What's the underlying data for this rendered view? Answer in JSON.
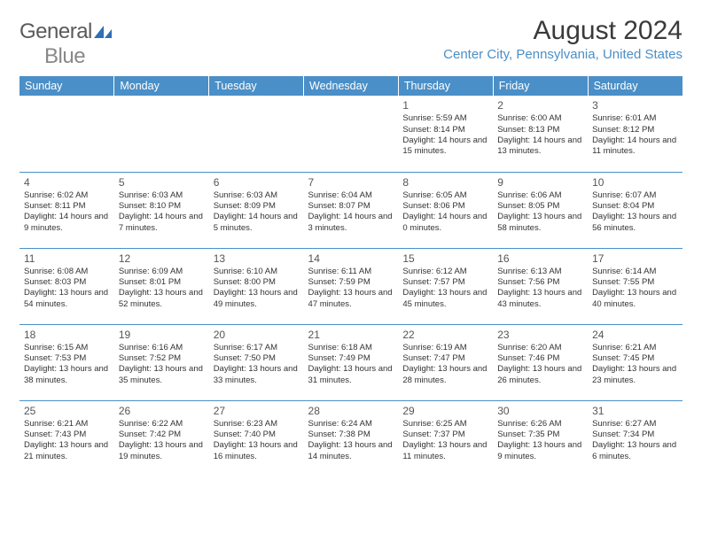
{
  "logo": {
    "word1": "General",
    "word2": "Blue"
  },
  "title": "August 2024",
  "location": "Center City, Pennsylvania, United States",
  "colors": {
    "header_bg": "#4a8fc7",
    "header_text": "#ffffff",
    "divider": "#4a8fc7",
    "location_text": "#4a8fc7",
    "logo_gray": "#888888",
    "logo_blue": "#2e6fb5"
  },
  "day_headers": [
    "Sunday",
    "Monday",
    "Tuesday",
    "Wednesday",
    "Thursday",
    "Friday",
    "Saturday"
  ],
  "weeks": [
    [
      {
        "num": "",
        "sunrise": "",
        "sunset": "",
        "daylight": ""
      },
      {
        "num": "",
        "sunrise": "",
        "sunset": "",
        "daylight": ""
      },
      {
        "num": "",
        "sunrise": "",
        "sunset": "",
        "daylight": ""
      },
      {
        "num": "",
        "sunrise": "",
        "sunset": "",
        "daylight": ""
      },
      {
        "num": "1",
        "sunrise": "Sunrise: 5:59 AM",
        "sunset": "Sunset: 8:14 PM",
        "daylight": "Daylight: 14 hours and 15 minutes."
      },
      {
        "num": "2",
        "sunrise": "Sunrise: 6:00 AM",
        "sunset": "Sunset: 8:13 PM",
        "daylight": "Daylight: 14 hours and 13 minutes."
      },
      {
        "num": "3",
        "sunrise": "Sunrise: 6:01 AM",
        "sunset": "Sunset: 8:12 PM",
        "daylight": "Daylight: 14 hours and 11 minutes."
      }
    ],
    [
      {
        "num": "4",
        "sunrise": "Sunrise: 6:02 AM",
        "sunset": "Sunset: 8:11 PM",
        "daylight": "Daylight: 14 hours and 9 minutes."
      },
      {
        "num": "5",
        "sunrise": "Sunrise: 6:03 AM",
        "sunset": "Sunset: 8:10 PM",
        "daylight": "Daylight: 14 hours and 7 minutes."
      },
      {
        "num": "6",
        "sunrise": "Sunrise: 6:03 AM",
        "sunset": "Sunset: 8:09 PM",
        "daylight": "Daylight: 14 hours and 5 minutes."
      },
      {
        "num": "7",
        "sunrise": "Sunrise: 6:04 AM",
        "sunset": "Sunset: 8:07 PM",
        "daylight": "Daylight: 14 hours and 3 minutes."
      },
      {
        "num": "8",
        "sunrise": "Sunrise: 6:05 AM",
        "sunset": "Sunset: 8:06 PM",
        "daylight": "Daylight: 14 hours and 0 minutes."
      },
      {
        "num": "9",
        "sunrise": "Sunrise: 6:06 AM",
        "sunset": "Sunset: 8:05 PM",
        "daylight": "Daylight: 13 hours and 58 minutes."
      },
      {
        "num": "10",
        "sunrise": "Sunrise: 6:07 AM",
        "sunset": "Sunset: 8:04 PM",
        "daylight": "Daylight: 13 hours and 56 minutes."
      }
    ],
    [
      {
        "num": "11",
        "sunrise": "Sunrise: 6:08 AM",
        "sunset": "Sunset: 8:03 PM",
        "daylight": "Daylight: 13 hours and 54 minutes."
      },
      {
        "num": "12",
        "sunrise": "Sunrise: 6:09 AM",
        "sunset": "Sunset: 8:01 PM",
        "daylight": "Daylight: 13 hours and 52 minutes."
      },
      {
        "num": "13",
        "sunrise": "Sunrise: 6:10 AM",
        "sunset": "Sunset: 8:00 PM",
        "daylight": "Daylight: 13 hours and 49 minutes."
      },
      {
        "num": "14",
        "sunrise": "Sunrise: 6:11 AM",
        "sunset": "Sunset: 7:59 PM",
        "daylight": "Daylight: 13 hours and 47 minutes."
      },
      {
        "num": "15",
        "sunrise": "Sunrise: 6:12 AM",
        "sunset": "Sunset: 7:57 PM",
        "daylight": "Daylight: 13 hours and 45 minutes."
      },
      {
        "num": "16",
        "sunrise": "Sunrise: 6:13 AM",
        "sunset": "Sunset: 7:56 PM",
        "daylight": "Daylight: 13 hours and 43 minutes."
      },
      {
        "num": "17",
        "sunrise": "Sunrise: 6:14 AM",
        "sunset": "Sunset: 7:55 PM",
        "daylight": "Daylight: 13 hours and 40 minutes."
      }
    ],
    [
      {
        "num": "18",
        "sunrise": "Sunrise: 6:15 AM",
        "sunset": "Sunset: 7:53 PM",
        "daylight": "Daylight: 13 hours and 38 minutes."
      },
      {
        "num": "19",
        "sunrise": "Sunrise: 6:16 AM",
        "sunset": "Sunset: 7:52 PM",
        "daylight": "Daylight: 13 hours and 35 minutes."
      },
      {
        "num": "20",
        "sunrise": "Sunrise: 6:17 AM",
        "sunset": "Sunset: 7:50 PM",
        "daylight": "Daylight: 13 hours and 33 minutes."
      },
      {
        "num": "21",
        "sunrise": "Sunrise: 6:18 AM",
        "sunset": "Sunset: 7:49 PM",
        "daylight": "Daylight: 13 hours and 31 minutes."
      },
      {
        "num": "22",
        "sunrise": "Sunrise: 6:19 AM",
        "sunset": "Sunset: 7:47 PM",
        "daylight": "Daylight: 13 hours and 28 minutes."
      },
      {
        "num": "23",
        "sunrise": "Sunrise: 6:20 AM",
        "sunset": "Sunset: 7:46 PM",
        "daylight": "Daylight: 13 hours and 26 minutes."
      },
      {
        "num": "24",
        "sunrise": "Sunrise: 6:21 AM",
        "sunset": "Sunset: 7:45 PM",
        "daylight": "Daylight: 13 hours and 23 minutes."
      }
    ],
    [
      {
        "num": "25",
        "sunrise": "Sunrise: 6:21 AM",
        "sunset": "Sunset: 7:43 PM",
        "daylight": "Daylight: 13 hours and 21 minutes."
      },
      {
        "num": "26",
        "sunrise": "Sunrise: 6:22 AM",
        "sunset": "Sunset: 7:42 PM",
        "daylight": "Daylight: 13 hours and 19 minutes."
      },
      {
        "num": "27",
        "sunrise": "Sunrise: 6:23 AM",
        "sunset": "Sunset: 7:40 PM",
        "daylight": "Daylight: 13 hours and 16 minutes."
      },
      {
        "num": "28",
        "sunrise": "Sunrise: 6:24 AM",
        "sunset": "Sunset: 7:38 PM",
        "daylight": "Daylight: 13 hours and 14 minutes."
      },
      {
        "num": "29",
        "sunrise": "Sunrise: 6:25 AM",
        "sunset": "Sunset: 7:37 PM",
        "daylight": "Daylight: 13 hours and 11 minutes."
      },
      {
        "num": "30",
        "sunrise": "Sunrise: 6:26 AM",
        "sunset": "Sunset: 7:35 PM",
        "daylight": "Daylight: 13 hours and 9 minutes."
      },
      {
        "num": "31",
        "sunrise": "Sunrise: 6:27 AM",
        "sunset": "Sunset: 7:34 PM",
        "daylight": "Daylight: 13 hours and 6 minutes."
      }
    ]
  ]
}
